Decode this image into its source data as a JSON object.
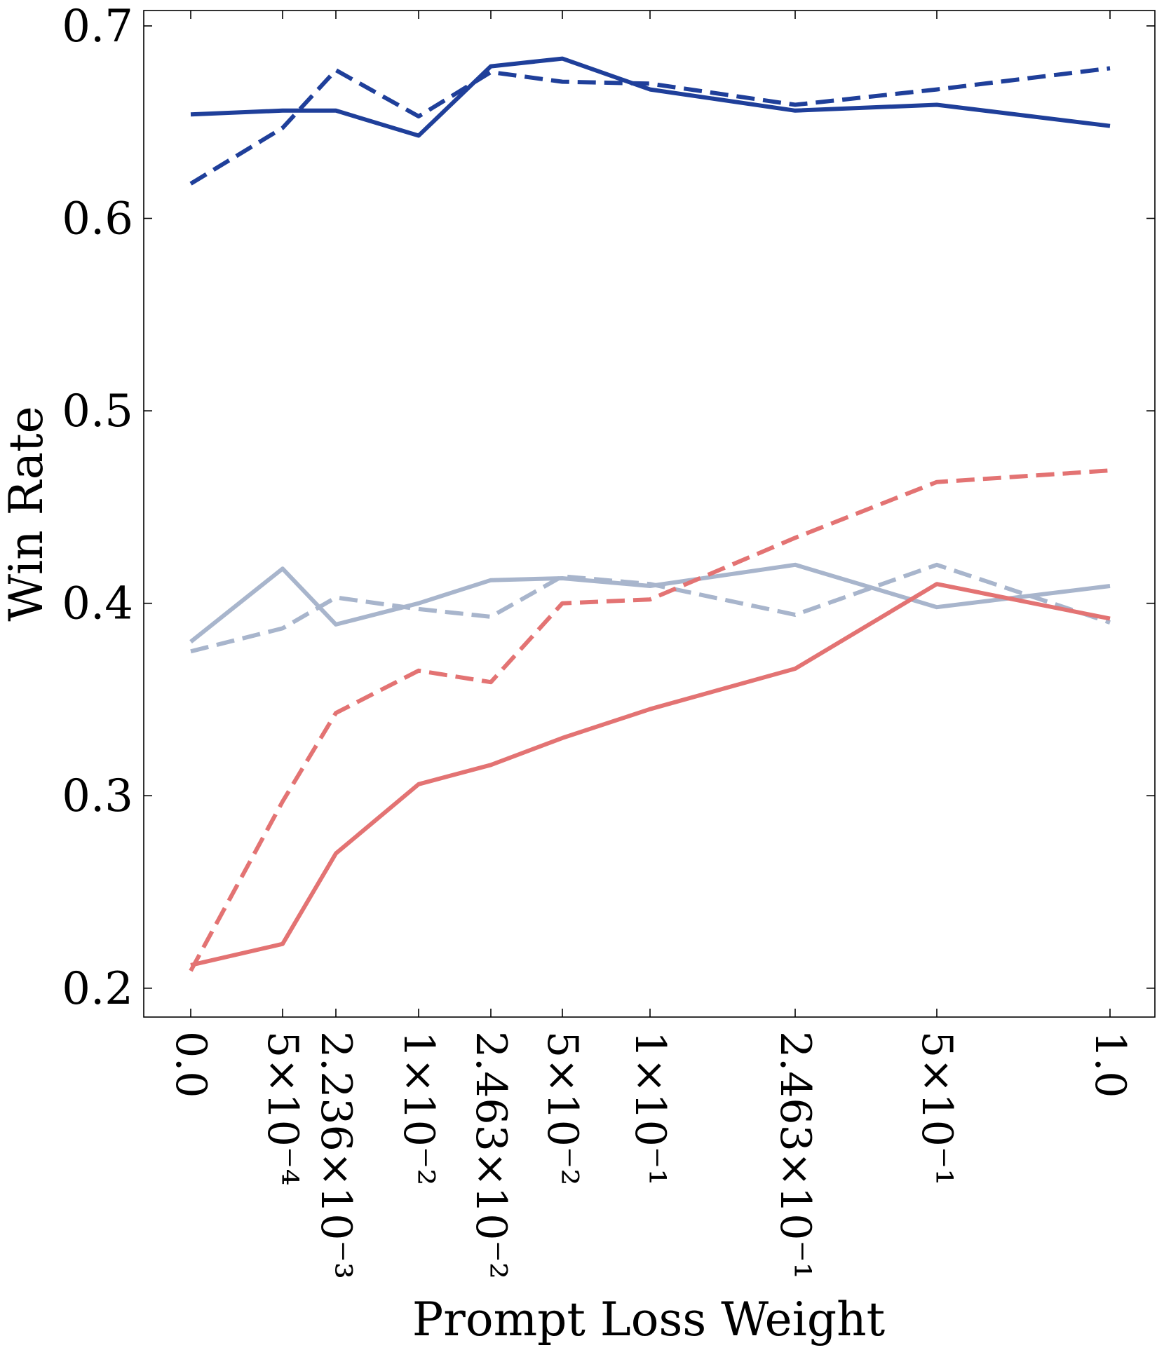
{
  "chart_data": {
    "type": "line",
    "title": "",
    "xlabel": "Prompt Loss Weight",
    "ylabel": "Win Rate",
    "ylim": [
      0.185,
      0.708
    ],
    "grid": false,
    "x_tick_labels": [
      {
        "text": "0.0",
        "value": 0.0
      },
      {
        "text": "5×10⁻⁴",
        "value": 0.0005
      },
      {
        "text": "2.236×10⁻³",
        "value": 0.002236
      },
      {
        "text": "1×10⁻²",
        "value": 0.01
      },
      {
        "text": "2.463×10⁻²",
        "value": 0.02463
      },
      {
        "text": "5×10⁻²",
        "value": 0.05
      },
      {
        "text": "1×10⁻¹",
        "value": 0.1
      },
      {
        "text": "2.463×10⁻¹",
        "value": 0.2463
      },
      {
        "text": "5×10⁻¹",
        "value": 0.5
      },
      {
        "text": "1.0",
        "value": 1.0
      }
    ],
    "y_ticks": [
      {
        "text": "0.2",
        "value": 0.2
      },
      {
        "text": "0.3",
        "value": 0.3
      },
      {
        "text": "0.4",
        "value": 0.4
      },
      {
        "text": "0.5",
        "value": 0.5
      },
      {
        "text": "0.6",
        "value": 0.6
      },
      {
        "text": "0.7",
        "value": 0.7
      }
    ],
    "x": [
      0.0,
      0.0005,
      0.002236,
      0.01,
      0.02463,
      0.05,
      0.1,
      0.2463,
      0.5,
      1.0
    ],
    "series": [
      {
        "color": "#1f3f9a",
        "dash": "solid",
        "values": [
          0.654,
          0.656,
          0.656,
          0.643,
          0.679,
          0.683,
          0.667,
          0.656,
          0.659,
          0.648
        ]
      },
      {
        "color": "#1f3f9a",
        "dash": "dashed",
        "values": [
          0.618,
          0.647,
          0.677,
          0.653,
          0.676,
          0.671,
          0.67,
          0.659,
          0.667,
          0.678
        ]
      },
      {
        "color": "#a8b5cc",
        "dash": "solid",
        "values": [
          0.38,
          0.418,
          0.389,
          0.4,
          0.412,
          0.413,
          0.409,
          0.42,
          0.398,
          0.409
        ]
      },
      {
        "color": "#a8b5cc",
        "dash": "dashed",
        "values": [
          0.375,
          0.387,
          0.403,
          0.397,
          0.393,
          0.414,
          0.41,
          0.394,
          0.42,
          0.39
        ]
      },
      {
        "color": "#e37373",
        "dash": "solid",
        "values": [
          0.212,
          0.223,
          0.27,
          0.306,
          0.316,
          0.33,
          0.345,
          0.366,
          0.41,
          0.392
        ]
      },
      {
        "color": "#e37373",
        "dash": "dashed",
        "values": [
          0.209,
          0.297,
          0.343,
          0.365,
          0.359,
          0.4,
          0.402,
          0.434,
          0.463,
          0.469
        ]
      }
    ]
  }
}
